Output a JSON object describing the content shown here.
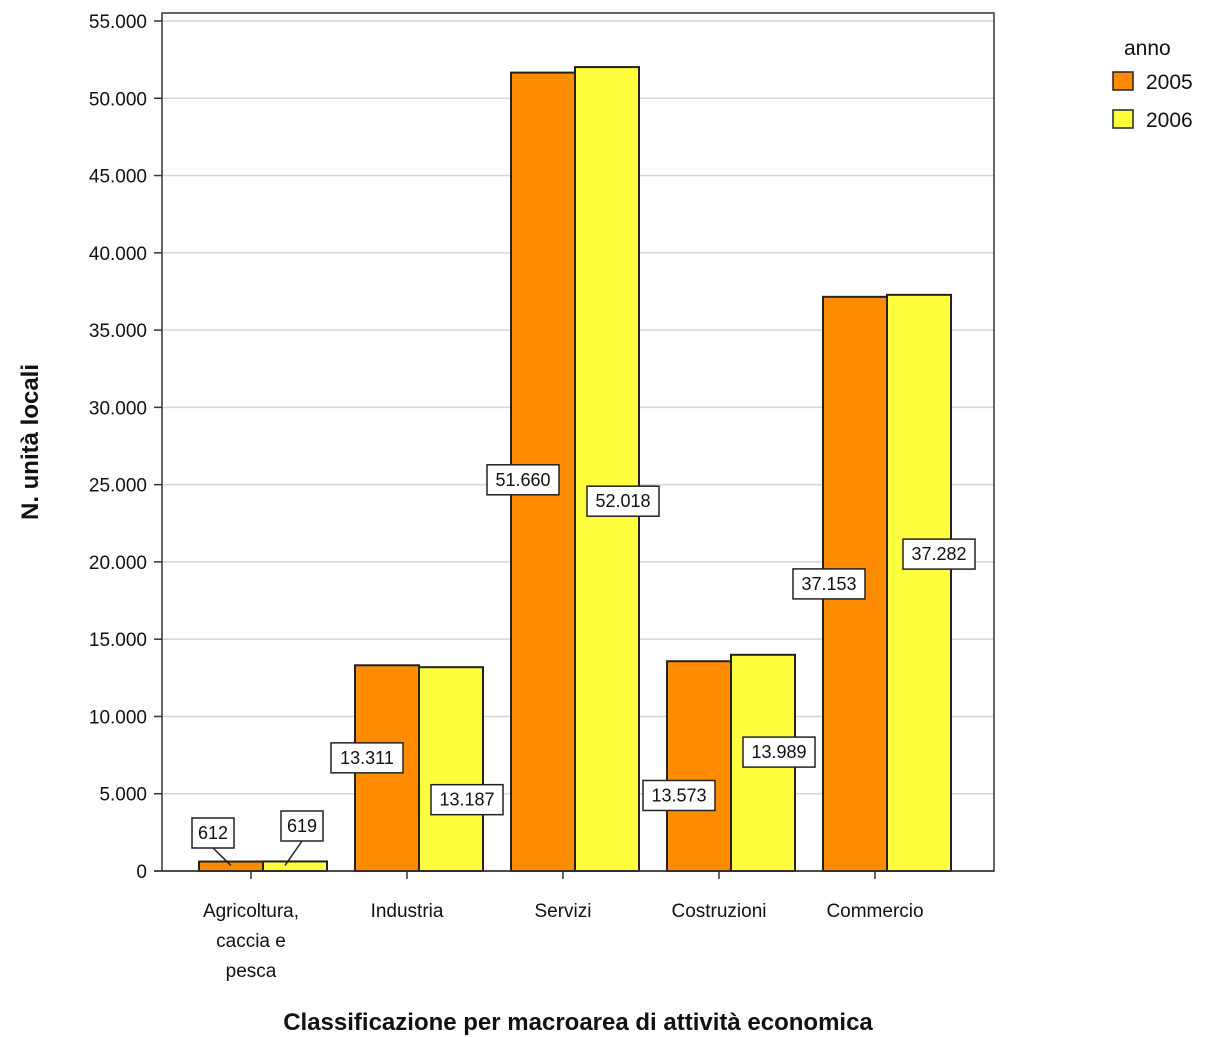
{
  "chart_data": {
    "type": "bar",
    "categories": [
      [
        "Agricoltura,",
        "caccia e",
        "pesca"
      ],
      [
        "Industria"
      ],
      [
        "Servizi"
      ],
      [
        "Costruzioni"
      ],
      [
        "Commercio"
      ]
    ],
    "series": [
      {
        "name": "2005",
        "values": [
          612,
          13311,
          51660,
          13573,
          37153
        ],
        "labels": [
          "612",
          "13.311",
          "51.660",
          "13.573",
          "37.153"
        ],
        "color": "#FF8C00"
      },
      {
        "name": "2006",
        "values": [
          619,
          13187,
          52018,
          13989,
          37282
        ],
        "labels": [
          "619",
          "13.187",
          "52.018",
          "13.989",
          "37.282"
        ],
        "color": "#FFFF40"
      }
    ],
    "ylim": [
      0,
      55000
    ],
    "yticks": [
      0,
      5000,
      10000,
      15000,
      20000,
      25000,
      30000,
      35000,
      40000,
      45000,
      50000,
      55000
    ],
    "ytick_labels": [
      "0",
      "5.000",
      "10.000",
      "15.000",
      "20.000",
      "25.000",
      "30.000",
      "35.000",
      "40.000",
      "45.000",
      "50.000",
      "55.000"
    ],
    "xlabel": "Classificazione per macroarea di attività economica",
    "ylabel": "N. unità locali",
    "legend": {
      "title": "anno",
      "position": "top-right"
    },
    "grid": true
  }
}
